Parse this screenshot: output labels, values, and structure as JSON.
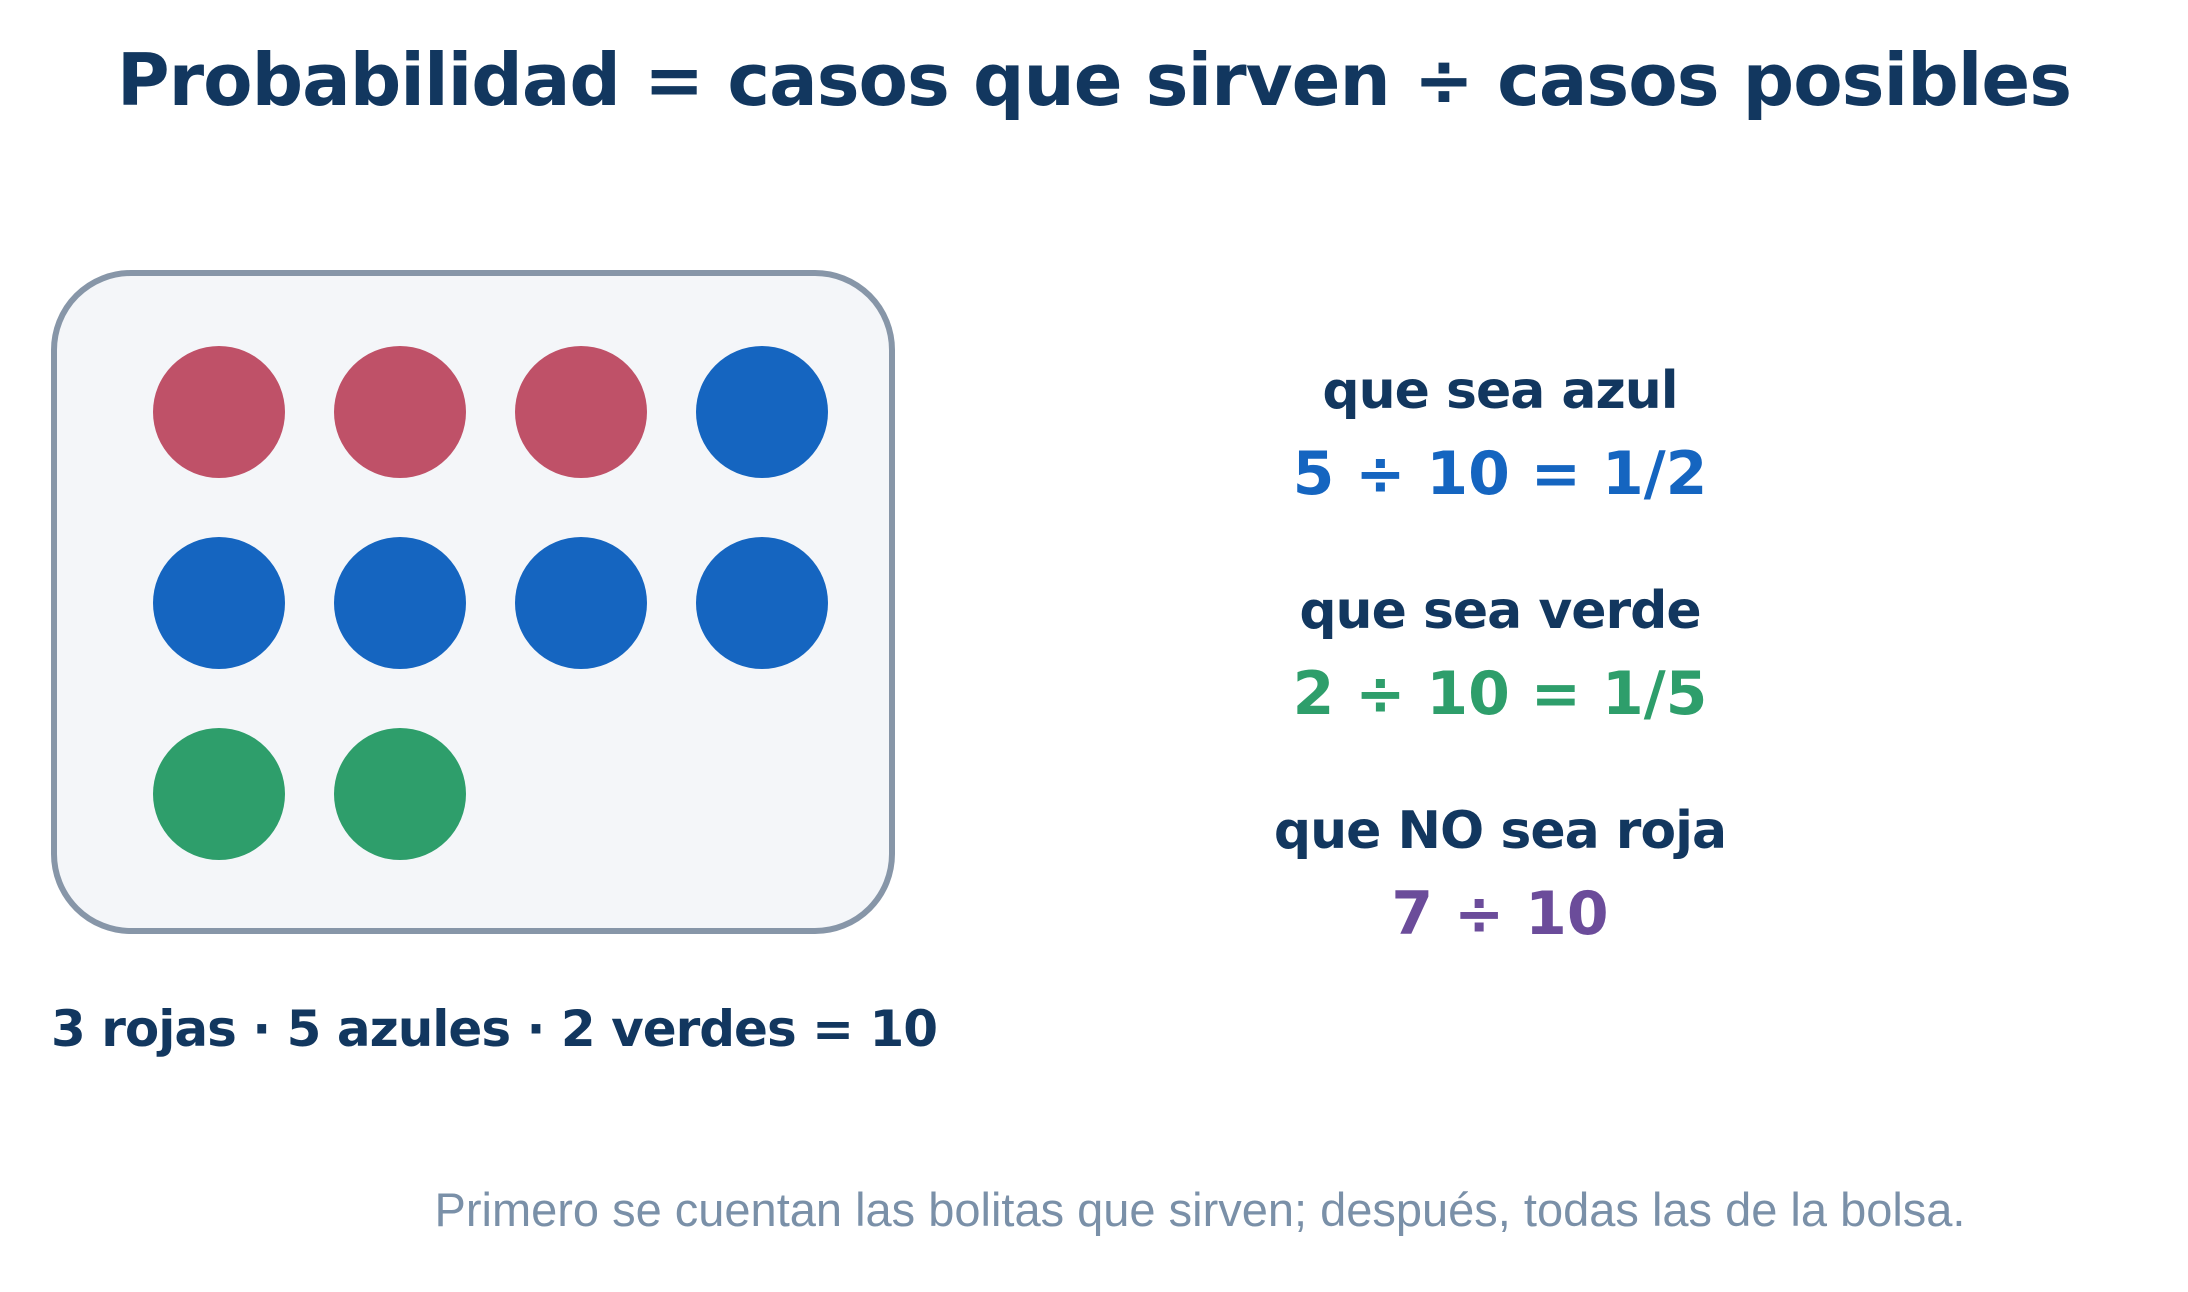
{
  "title": "Probabilidad = casos que sirven ÷ casos posibles",
  "bag": {
    "columns": 4,
    "balls": [
      {
        "color_name": "roja",
        "color": "#bf5168"
      },
      {
        "color_name": "roja",
        "color": "#bf5168"
      },
      {
        "color_name": "roja",
        "color": "#bf5168"
      },
      {
        "color_name": "azul",
        "color": "#1565c0"
      },
      {
        "color_name": "azul",
        "color": "#1565c0"
      },
      {
        "color_name": "azul",
        "color": "#1565c0"
      },
      {
        "color_name": "azul",
        "color": "#1565c0"
      },
      {
        "color_name": "azul",
        "color": "#1565c0"
      },
      {
        "color_name": "verde",
        "color": "#2e9e6b"
      },
      {
        "color_name": "verde",
        "color": "#2e9e6b"
      }
    ],
    "summary": "3 rojas · 5 azules · 2 verdes = 10"
  },
  "cases": [
    {
      "label": "que sea azul",
      "calc": "5 ÷ 10 = 1/2",
      "color": "#1565c0"
    },
    {
      "label": "que sea verde",
      "calc": "2 ÷ 10 = 1/5",
      "color": "#2e9e6b"
    },
    {
      "label": "que NO sea roja",
      "calc": "7 ÷ 10",
      "color": "#6b4c9a"
    }
  ],
  "footnote": "Primero se cuentan las bolitas que sirven; después, todas las de la bolsa."
}
